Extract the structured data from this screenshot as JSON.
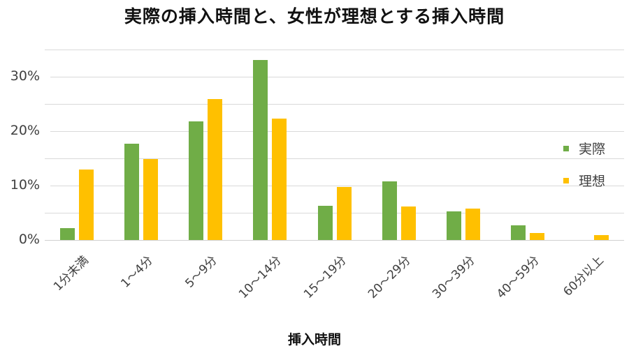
{
  "chart_data": {
    "type": "bar",
    "title": "実際の挿入時間と、女性が理想とする挿入時間",
    "xlabel": "挿入時間",
    "ylabel": "",
    "ylim": [
      0,
      35
    ],
    "yticks": [
      "0%",
      "10%",
      "20%",
      "30%"
    ],
    "grid": true,
    "legend_position": "right",
    "categories": [
      "1分未満",
      "1～4分",
      "5～9分",
      "10～14分",
      "15～19分",
      "20～29分",
      "30～39分",
      "40～59分",
      "60分以上"
    ],
    "series": [
      {
        "name": "実際",
        "color": "#70AD47",
        "values": [
          2.2,
          17.7,
          21.8,
          33.1,
          6.3,
          10.8,
          5.3,
          2.7,
          0
        ]
      },
      {
        "name": "理想",
        "color": "#FFC000",
        "values": [
          12.9,
          14.9,
          25.9,
          22.3,
          9.8,
          6.2,
          5.8,
          1.3,
          0.9
        ]
      }
    ]
  },
  "legend": {
    "items": [
      {
        "label": "実際",
        "color": "#70AD47"
      },
      {
        "label": "理想",
        "color": "#FFC000"
      }
    ]
  }
}
